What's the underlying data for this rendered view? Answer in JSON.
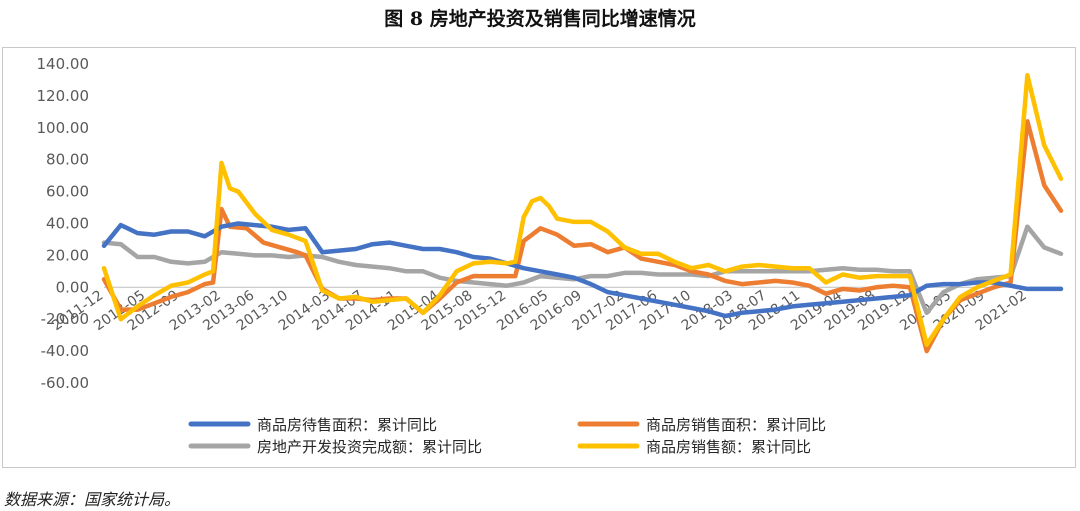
{
  "figure": {
    "title": "图 8  房地产投资及销售同比增速情况",
    "source": "数据来源：国家统计局。"
  },
  "chart_data": {
    "type": "line",
    "title": "图 8  房地产投资及销售同比增速情况",
    "xlabel": "",
    "ylabel": "",
    "ylim": [
      -60,
      140
    ],
    "yticks": [
      "140.00",
      "120.00",
      "100.00",
      "80.00",
      "60.00",
      "40.00",
      "20.00",
      "0.00",
      "-20.00",
      "-40.00",
      "-60.00"
    ],
    "x_start": "2011-12",
    "x_end": "2021-06",
    "x_tick_labels": [
      "2011-12",
      "2012-05",
      "2012-09",
      "2013-02",
      "2013-06",
      "2013-10",
      "2014-03",
      "2014-07",
      "2014-11",
      "2015-04",
      "2015-08",
      "2015-12",
      "2016-05",
      "2016-09",
      "2017-02",
      "2017-06",
      "2017-10",
      "2018-03",
      "2018-07",
      "2018-11",
      "2019-04",
      "2019-08",
      "2019-12",
      "2020-05",
      "2020-09",
      "2021-02"
    ],
    "grid": false,
    "legend_position": "bottom",
    "series": [
      {
        "name": "商品房待售面积：累计同比",
        "color": "#4472C4",
        "points": [
          [
            "2011-12",
            26
          ],
          [
            "2012-02",
            39
          ],
          [
            "2012-04",
            34
          ],
          [
            "2012-06",
            33
          ],
          [
            "2012-08",
            35
          ],
          [
            "2012-10",
            35
          ],
          [
            "2012-12",
            32
          ],
          [
            "2013-02",
            38
          ],
          [
            "2013-04",
            40
          ],
          [
            "2013-06",
            39
          ],
          [
            "2013-08",
            38
          ],
          [
            "2013-10",
            36
          ],
          [
            "2013-12",
            37
          ],
          [
            "2014-02",
            22
          ],
          [
            "2014-04",
            23
          ],
          [
            "2014-06",
            24
          ],
          [
            "2014-08",
            27
          ],
          [
            "2014-10",
            28
          ],
          [
            "2014-12",
            26
          ],
          [
            "2015-02",
            24
          ],
          [
            "2015-04",
            24
          ],
          [
            "2015-06",
            22
          ],
          [
            "2015-08",
            19
          ],
          [
            "2015-10",
            18
          ],
          [
            "2015-12",
            15
          ],
          [
            "2016-02",
            12
          ],
          [
            "2016-04",
            10
          ],
          [
            "2016-06",
            8
          ],
          [
            "2016-08",
            6
          ],
          [
            "2016-10",
            2
          ],
          [
            "2016-12",
            -3
          ],
          [
            "2017-02",
            -5
          ],
          [
            "2017-04",
            -7
          ],
          [
            "2017-06",
            -9
          ],
          [
            "2017-08",
            -11
          ],
          [
            "2017-10",
            -13
          ],
          [
            "2017-12",
            -15
          ],
          [
            "2018-02",
            -18
          ],
          [
            "2018-04",
            -16
          ],
          [
            "2018-06",
            -15
          ],
          [
            "2018-08",
            -14
          ],
          [
            "2018-10",
            -12
          ],
          [
            "2018-12",
            -11
          ],
          [
            "2019-02",
            -10
          ],
          [
            "2019-04",
            -9
          ],
          [
            "2019-06",
            -8
          ],
          [
            "2019-08",
            -7
          ],
          [
            "2019-10",
            -6
          ],
          [
            "2019-12",
            -5
          ],
          [
            "2020-02",
            1
          ],
          [
            "2020-04",
            2
          ],
          [
            "2020-06",
            2
          ],
          [
            "2020-08",
            3
          ],
          [
            "2020-10",
            3
          ],
          [
            "2020-12",
            1
          ],
          [
            "2021-02",
            -1
          ],
          [
            "2021-04",
            -1
          ],
          [
            "2021-06",
            -1
          ]
        ]
      },
      {
        "name": "商品房销售面积：累计同比",
        "color": "#ED7D31",
        "points": [
          [
            "2011-12",
            5
          ],
          [
            "2012-02",
            -14
          ],
          [
            "2012-04",
            -14
          ],
          [
            "2012-06",
            -10
          ],
          [
            "2012-08",
            -6
          ],
          [
            "2012-10",
            -3
          ],
          [
            "2012-12",
            2
          ],
          [
            "2013-01",
            3
          ],
          [
            "2013-02",
            49
          ],
          [
            "2013-03",
            38
          ],
          [
            "2013-05",
            37
          ],
          [
            "2013-07",
            28
          ],
          [
            "2013-09",
            25
          ],
          [
            "2013-11",
            22
          ],
          [
            "2013-12",
            20
          ],
          [
            "2014-02",
            -1
          ],
          [
            "2014-04",
            -7
          ],
          [
            "2014-06",
            -7
          ],
          [
            "2014-08",
            -8
          ],
          [
            "2014-10",
            -7
          ],
          [
            "2014-12",
            -7
          ],
          [
            "2015-02",
            -16
          ],
          [
            "2015-04",
            -7
          ],
          [
            "2015-06",
            3
          ],
          [
            "2015-08",
            7
          ],
          [
            "2015-10",
            7
          ],
          [
            "2015-12",
            7
          ],
          [
            "2016-01",
            7
          ],
          [
            "2016-02",
            29
          ],
          [
            "2016-04",
            37
          ],
          [
            "2016-06",
            33
          ],
          [
            "2016-08",
            26
          ],
          [
            "2016-10",
            27
          ],
          [
            "2016-12",
            22
          ],
          [
            "2017-02",
            25
          ],
          [
            "2017-04",
            18
          ],
          [
            "2017-06",
            16
          ],
          [
            "2017-08",
            14
          ],
          [
            "2017-10",
            10
          ],
          [
            "2017-12",
            8
          ],
          [
            "2018-02",
            4
          ],
          [
            "2018-04",
            2
          ],
          [
            "2018-06",
            3
          ],
          [
            "2018-08",
            4
          ],
          [
            "2018-10",
            3
          ],
          [
            "2018-12",
            1
          ],
          [
            "2019-02",
            -4
          ],
          [
            "2019-04",
            -1
          ],
          [
            "2019-06",
            -2
          ],
          [
            "2019-08",
            0
          ],
          [
            "2019-10",
            1
          ],
          [
            "2019-12",
            0
          ],
          [
            "2020-02",
            -40
          ],
          [
            "2020-04",
            -20
          ],
          [
            "2020-06",
            -8
          ],
          [
            "2020-08",
            -4
          ],
          [
            "2020-10",
            0
          ],
          [
            "2020-12",
            3
          ],
          [
            "2021-02",
            104
          ],
          [
            "2021-04",
            64
          ],
          [
            "2021-06",
            48
          ]
        ]
      },
      {
        "name": "房地产开发投资完成额：累计同比",
        "color": "#A5A5A5",
        "points": [
          [
            "2011-12",
            28
          ],
          [
            "2012-02",
            27
          ],
          [
            "2012-04",
            19
          ],
          [
            "2012-06",
            19
          ],
          [
            "2012-08",
            16
          ],
          [
            "2012-10",
            15
          ],
          [
            "2012-12",
            16
          ],
          [
            "2013-02",
            22
          ],
          [
            "2013-04",
            21
          ],
          [
            "2013-06",
            20
          ],
          [
            "2013-08",
            20
          ],
          [
            "2013-10",
            19
          ],
          [
            "2013-12",
            20
          ],
          [
            "2014-02",
            19
          ],
          [
            "2014-04",
            16
          ],
          [
            "2014-06",
            14
          ],
          [
            "2014-08",
            13
          ],
          [
            "2014-10",
            12
          ],
          [
            "2014-12",
            10
          ],
          [
            "2015-02",
            10
          ],
          [
            "2015-04",
            6
          ],
          [
            "2015-06",
            4
          ],
          [
            "2015-08",
            3
          ],
          [
            "2015-10",
            2
          ],
          [
            "2015-12",
            1
          ],
          [
            "2016-02",
            3
          ],
          [
            "2016-04",
            7
          ],
          [
            "2016-06",
            6
          ],
          [
            "2016-08",
            5
          ],
          [
            "2016-10",
            7
          ],
          [
            "2016-12",
            7
          ],
          [
            "2017-02",
            9
          ],
          [
            "2017-04",
            9
          ],
          [
            "2017-06",
            8
          ],
          [
            "2017-08",
            8
          ],
          [
            "2017-10",
            8
          ],
          [
            "2017-12",
            7
          ],
          [
            "2018-02",
            10
          ],
          [
            "2018-04",
            10
          ],
          [
            "2018-06",
            10
          ],
          [
            "2018-08",
            10
          ],
          [
            "2018-10",
            10
          ],
          [
            "2018-12",
            10
          ],
          [
            "2019-02",
            11
          ],
          [
            "2019-04",
            12
          ],
          [
            "2019-06",
            11
          ],
          [
            "2019-08",
            11
          ],
          [
            "2019-10",
            10
          ],
          [
            "2019-12",
            10
          ],
          [
            "2020-02",
            -16
          ],
          [
            "2020-04",
            -3
          ],
          [
            "2020-06",
            2
          ],
          [
            "2020-08",
            5
          ],
          [
            "2020-10",
            6
          ],
          [
            "2020-12",
            7
          ],
          [
            "2021-02",
            38
          ],
          [
            "2021-04",
            25
          ],
          [
            "2021-06",
            21
          ]
        ]
      },
      {
        "name": "商品房销售额：累计同比",
        "color": "#FFC000",
        "points": [
          [
            "2011-12",
            12
          ],
          [
            "2012-02",
            -20
          ],
          [
            "2012-04",
            -12
          ],
          [
            "2012-06",
            -5
          ],
          [
            "2012-08",
            1
          ],
          [
            "2012-10",
            3
          ],
          [
            "2012-12",
            8
          ],
          [
            "2013-01",
            10
          ],
          [
            "2013-02",
            78
          ],
          [
            "2013-03",
            62
          ],
          [
            "2013-04",
            60
          ],
          [
            "2013-06",
            46
          ],
          [
            "2013-08",
            36
          ],
          [
            "2013-10",
            33
          ],
          [
            "2013-12",
            29
          ],
          [
            "2014-02",
            -2
          ],
          [
            "2014-04",
            -7
          ],
          [
            "2014-06",
            -6
          ],
          [
            "2014-08",
            -9
          ],
          [
            "2014-10",
            -8
          ],
          [
            "2014-12",
            -7
          ],
          [
            "2015-02",
            -16
          ],
          [
            "2015-04",
            -5
          ],
          [
            "2015-06",
            10
          ],
          [
            "2015-08",
            15
          ],
          [
            "2015-10",
            16
          ],
          [
            "2015-12",
            15
          ],
          [
            "2016-01",
            16
          ],
          [
            "2016-02",
            44
          ],
          [
            "2016-03",
            54
          ],
          [
            "2016-04",
            56
          ],
          [
            "2016-05",
            51
          ],
          [
            "2016-06",
            43
          ],
          [
            "2016-08",
            41
          ],
          [
            "2016-10",
            41
          ],
          [
            "2016-12",
            35
          ],
          [
            "2017-02",
            25
          ],
          [
            "2017-04",
            21
          ],
          [
            "2017-06",
            21
          ],
          [
            "2017-08",
            16
          ],
          [
            "2017-10",
            12
          ],
          [
            "2017-12",
            14
          ],
          [
            "2018-02",
            10
          ],
          [
            "2018-04",
            13
          ],
          [
            "2018-06",
            14
          ],
          [
            "2018-08",
            13
          ],
          [
            "2018-10",
            12
          ],
          [
            "2018-12",
            12
          ],
          [
            "2019-02",
            3
          ],
          [
            "2019-04",
            8
          ],
          [
            "2019-06",
            6
          ],
          [
            "2019-08",
            7
          ],
          [
            "2019-10",
            7
          ],
          [
            "2019-12",
            7
          ],
          [
            "2020-02",
            -36
          ],
          [
            "2020-04",
            -20
          ],
          [
            "2020-06",
            -6
          ],
          [
            "2020-08",
            0
          ],
          [
            "2020-10",
            4
          ],
          [
            "2020-12",
            8
          ],
          [
            "2021-02",
            133
          ],
          [
            "2021-04",
            89
          ],
          [
            "2021-06",
            68
          ]
        ]
      }
    ]
  }
}
